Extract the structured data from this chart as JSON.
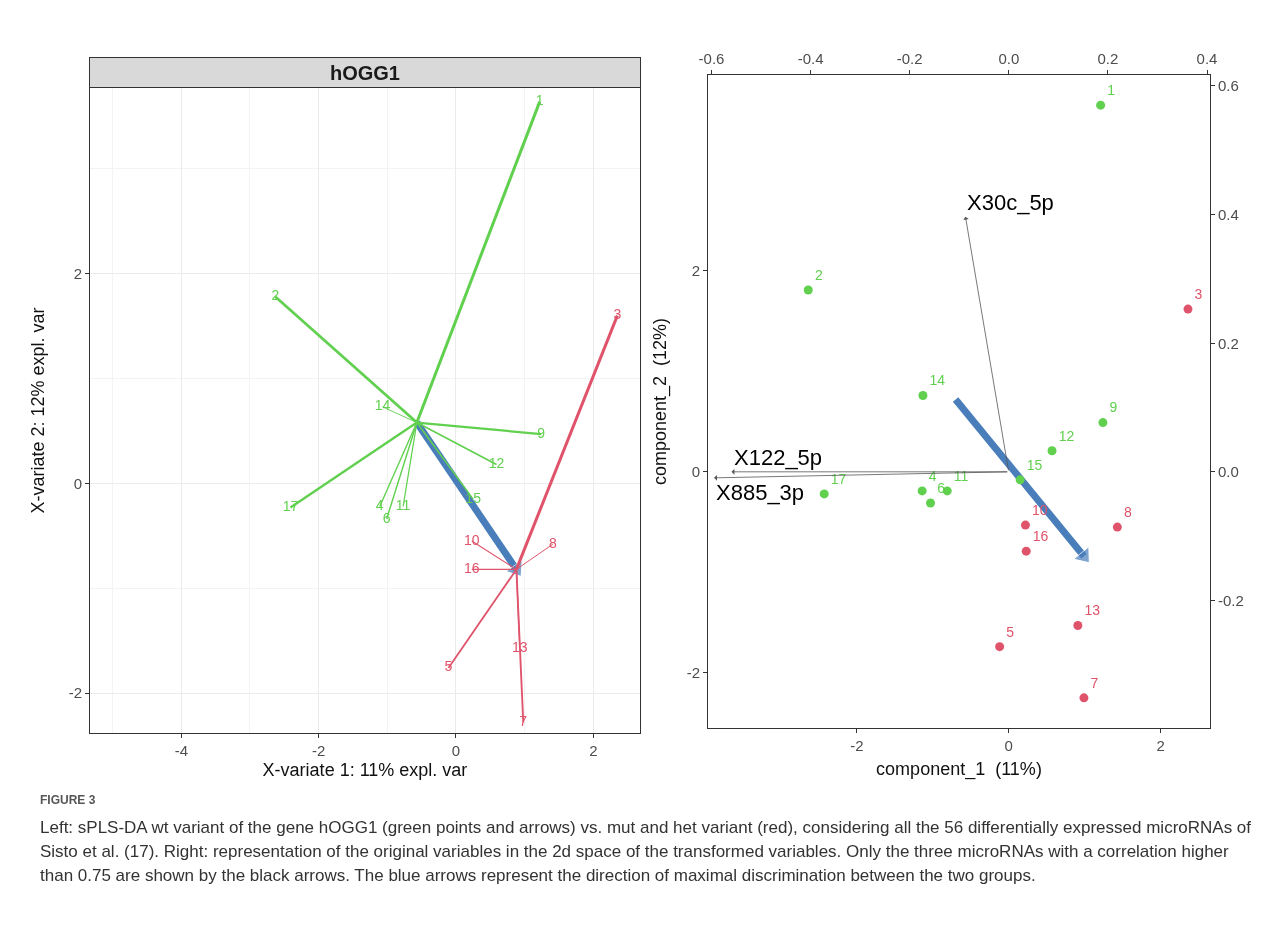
{
  "chart_data": [
    {
      "type": "line",
      "title": "hOGG1",
      "xlabel": "X-variate 1: 11% expl. var",
      "ylabel": "X-variate 2: 12% expl. var",
      "xlim": [
        -5.33,
        2.68
      ],
      "ylim": [
        -2.38,
        3.77
      ],
      "xticks": [
        -4,
        -2,
        0,
        2
      ],
      "yticks": [
        -2,
        0,
        2
      ],
      "grid": true,
      "legend": false,
      "marker": "none",
      "series": [
        {
          "type": "line",
          "color": "#4a7ebb",
          "marker": "triangle",
          "x": [
            -0.57,
            0.88
          ],
          "values": [
            0.58,
            -0.82
          ]
        },
        {
          "name": "1",
          "color": "#61d04f",
          "x": [
            -0.57,
            1.22
          ],
          "values": [
            0.58,
            3.64
          ]
        },
        {
          "name": "2",
          "color": "#61d04f",
          "x": [
            -0.57,
            -2.63
          ],
          "values": [
            0.58,
            1.78
          ]
        },
        {
          "name": "3",
          "color": "#df536b",
          "x": [
            0.88,
            2.35
          ],
          "values": [
            -0.82,
            1.6
          ]
        },
        {
          "name": "4",
          "color": "#61d04f",
          "x": [
            -0.57,
            -1.11
          ],
          "values": [
            0.58,
            -0.22
          ]
        },
        {
          "name": "5",
          "color": "#df536b",
          "x": [
            0.88,
            -0.11
          ],
          "values": [
            -0.82,
            -1.76
          ]
        },
        {
          "name": "6",
          "color": "#61d04f",
          "x": [
            -0.57,
            -1.01
          ],
          "values": [
            0.58,
            -0.34
          ]
        },
        {
          "name": "7",
          "color": "#df536b",
          "x": [
            0.88,
            0.98
          ],
          "values": [
            -0.82,
            -2.28
          ]
        },
        {
          "name": "8",
          "color": "#df536b",
          "x": [
            0.88,
            1.41
          ],
          "values": [
            -0.82,
            -0.58
          ]
        },
        {
          "name": "9",
          "color": "#61d04f",
          "x": [
            -0.57,
            1.24
          ],
          "values": [
            0.58,
            0.47
          ]
        },
        {
          "name": "10",
          "color": "#df536b",
          "x": [
            0.88,
            0.23
          ],
          "values": [
            -0.82,
            -0.55
          ]
        },
        {
          "name": "11",
          "color": "#61d04f",
          "x": [
            -0.57,
            -0.77
          ],
          "values": [
            0.58,
            -0.22
          ]
        },
        {
          "name": "12",
          "color": "#61d04f",
          "x": [
            -0.57,
            0.59
          ],
          "values": [
            0.58,
            0.18
          ]
        },
        {
          "name": "13",
          "color": "#df536b",
          "x": [
            0.88,
            0.93
          ],
          "values": [
            -0.82,
            -1.57
          ]
        },
        {
          "name": "14",
          "color": "#61d04f",
          "x": [
            -0.57,
            -1.07
          ],
          "values": [
            0.58,
            0.73
          ]
        },
        {
          "name": "15",
          "color": "#61d04f",
          "x": [
            -0.57,
            0.25
          ],
          "values": [
            0.58,
            -0.15
          ]
        },
        {
          "name": "16",
          "color": "#df536b",
          "x": [
            0.88,
            0.23
          ],
          "values": [
            -0.82,
            -0.82
          ]
        },
        {
          "name": "17",
          "color": "#61d04f",
          "x": [
            -0.57,
            -2.41
          ],
          "values": [
            0.58,
            -0.23
          ]
        }
      ],
      "annotations": [
        "FIGURE 3",
        "Left: sPLS-DA wt variant of the gene hOGG1 (green points and arrows) vs. mut and het variant (red), considering all the 56 differentially expressed microRNAs of Sisto et al. (17). Right: representation of the original variables in the 2d space of the transformed variables. Only the three microRNAs with a correlation higher than 0.75 are shown by the black arrows. The blue arrows represent the direction of maximal discrimination between the two groups."
      ]
    },
    {
      "type": "scatter",
      "xlabel": "component_1  (11%)",
      "ylabel": "component_2  (12%)",
      "xlim": [
        -3.96,
        2.65
      ],
      "ylim": [
        -2.55,
        3.95
      ],
      "xticks": [
        -2,
        0,
        2
      ],
      "yticks": [
        -2,
        0,
        2
      ],
      "x2lim": [
        -0.607,
        0.406
      ],
      "x2ticks": [
        -0.6,
        -0.4,
        -0.2,
        {
          "value": 0,
          "label": "0.0"
        },
        0.2,
        0.4
      ],
      "y2lim": [
        -0.398,
        0.617
      ],
      "y2ticks": [
        -0.2,
        {
          "value": 0,
          "label": "0.0"
        },
        0.2,
        0.4,
        0.6
      ],
      "grid": false,
      "legend": false,
      "marker": "circle",
      "series": [
        {
          "type": "line",
          "color": "#4a7ebb",
          "marker": "triangle",
          "x": [
            -0.7,
            0.99
          ],
          "values": [
            0.72,
            -0.84
          ]
        },
        {
          "name": "1",
          "color": "#61d04f",
          "x": [
            1.21
          ],
          "values": [
            3.65
          ]
        },
        {
          "name": "2",
          "color": "#61d04f",
          "x": [
            -2.64
          ],
          "values": [
            1.81
          ]
        },
        {
          "name": "3",
          "color": "#df536b",
          "x": [
            2.36
          ],
          "values": [
            1.62
          ]
        },
        {
          "name": "4",
          "color": "#61d04f",
          "x": [
            -1.14
          ],
          "values": [
            -0.19
          ]
        },
        {
          "name": "5",
          "color": "#df536b",
          "x": [
            -0.12
          ],
          "values": [
            -1.74
          ]
        },
        {
          "name": "6",
          "color": "#61d04f",
          "x": [
            -1.03
          ],
          "values": [
            -0.31
          ]
        },
        {
          "name": "7",
          "color": "#df536b",
          "x": [
            0.99
          ],
          "values": [
            -2.25
          ]
        },
        {
          "name": "8",
          "color": "#df536b",
          "x": [
            1.43
          ],
          "values": [
            -0.55
          ]
        },
        {
          "name": "9",
          "color": "#61d04f",
          "x": [
            1.24
          ],
          "values": [
            0.49
          ]
        },
        {
          "name": "10",
          "color": "#df536b",
          "x": [
            0.22
          ],
          "values": [
            -0.53
          ]
        },
        {
          "name": "11",
          "color": "#61d04f",
          "x": [
            -0.81
          ],
          "values": [
            -0.19
          ]
        },
        {
          "name": "12",
          "color": "#61d04f",
          "x": [
            0.57
          ],
          "values": [
            0.21
          ]
        },
        {
          "name": "13",
          "color": "#df536b",
          "x": [
            0.91
          ],
          "values": [
            -1.53
          ]
        },
        {
          "name": "14",
          "color": "#61d04f",
          "x": [
            -1.13
          ],
          "values": [
            0.76
          ]
        },
        {
          "name": "15",
          "color": "#61d04f",
          "x": [
            0.15
          ],
          "values": [
            -0.08
          ]
        },
        {
          "name": "16",
          "color": "#df536b",
          "x": [
            0.23
          ],
          "values": [
            -0.79
          ]
        },
        {
          "name": "17",
          "color": "#61d04f",
          "x": [
            -2.43
          ],
          "values": [
            -0.22
          ]
        }
      ],
      "annotations": [
        {
          "text": "X30c_5p",
          "x": -0.57,
          "y": 2.54
        },
        {
          "text": "X122_5p",
          "x": -3.65,
          "y": 0
        },
        {
          "text": "X885_3p",
          "x": -3.88,
          "y": -0.06
        }
      ]
    }
  ]
}
